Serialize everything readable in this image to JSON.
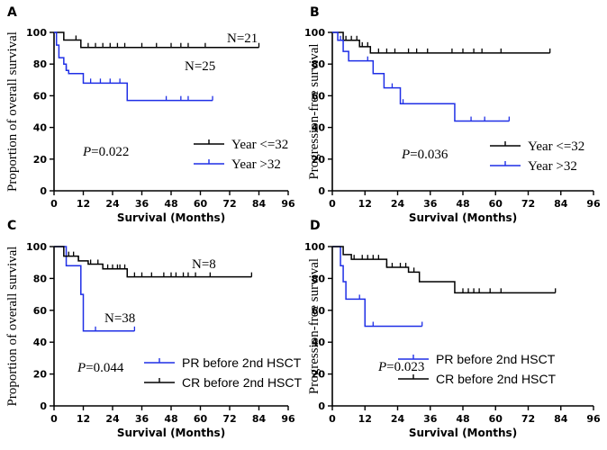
{
  "chart_data": [
    {
      "id": "A",
      "type": "line",
      "panel_letter": "A",
      "xlabel": "Survival (Months)",
      "ylabel": "Proportion of overall survival",
      "xlim": [
        0,
        96
      ],
      "ylim": [
        0,
        100
      ],
      "xticks": [
        "0",
        "12",
        "24",
        "36",
        "48",
        "60",
        "72",
        "84",
        "96"
      ],
      "yticks": [
        "0",
        "20",
        "40",
        "60",
        "80",
        "100"
      ],
      "p_value": "=0.022",
      "legend_font": "serif",
      "series": [
        {
          "name": "Year <=32",
          "color": "#000000",
          "steps": [
            [
              0,
              100
            ],
            [
              4,
              95.2
            ],
            [
              11,
              90.5
            ],
            [
              84,
              90.5
            ]
          ],
          "censors": [
            9,
            14,
            17,
            20,
            23,
            26,
            29,
            36,
            42,
            48,
            52,
            55,
            62,
            84
          ],
          "annotation": "N=21"
        },
        {
          "name": "Year >32",
          "color": "#1f2fe6",
          "steps": [
            [
              0,
              100
            ],
            [
              1,
              92
            ],
            [
              2,
              84
            ],
            [
              4,
              80
            ],
            [
              5,
              76
            ],
            [
              6,
              74
            ],
            [
              12,
              68
            ],
            [
              30,
              57
            ],
            [
              65,
              57
            ]
          ],
          "censors": [
            5,
            15,
            19,
            23,
            27,
            46,
            52,
            55,
            65
          ],
          "annotation": "N=25"
        }
      ]
    },
    {
      "id": "B",
      "type": "line",
      "panel_letter": "B",
      "xlabel": "Survival (Months)",
      "ylabel": "Progression-free survival",
      "xlim": [
        0,
        96
      ],
      "ylim": [
        0,
        100
      ],
      "xticks": [
        "0",
        "12",
        "24",
        "36",
        "48",
        "60",
        "72",
        "84",
        "96"
      ],
      "yticks": [
        "0",
        "20",
        "40",
        "60",
        "80",
        "100"
      ],
      "p_value": "=0.036",
      "legend_font": "serif",
      "series": [
        {
          "name": "Year <=32",
          "color": "#000000",
          "steps": [
            [
              0,
              100
            ],
            [
              4,
              95
            ],
            [
              10,
              91
            ],
            [
              14,
              87
            ],
            [
              80,
              87
            ]
          ],
          "censors": [
            5,
            7,
            9,
            11,
            13,
            17,
            20,
            23,
            28,
            31,
            35,
            44,
            48,
            52,
            55,
            62,
            80
          ],
          "annotation": ""
        },
        {
          "name": "Year >32",
          "color": "#1f2fe6",
          "steps": [
            [
              0,
              100
            ],
            [
              2,
              95
            ],
            [
              4,
              88
            ],
            [
              6,
              82
            ],
            [
              15,
              74
            ],
            [
              19,
              65
            ],
            [
              25,
              55
            ],
            [
              30,
              55
            ],
            [
              45,
              44
            ],
            [
              65,
              44
            ]
          ],
          "censors": [
            3,
            13,
            22,
            26,
            51,
            56,
            65
          ],
          "annotation": ""
        }
      ]
    },
    {
      "id": "C",
      "type": "line",
      "panel_letter": "C",
      "xlabel": "Survival (Months)",
      "ylabel": "Proportion of overall survival",
      "xlim": [
        0,
        96
      ],
      "ylim": [
        0,
        100
      ],
      "xticks": [
        "0",
        "12",
        "24",
        "36",
        "48",
        "60",
        "72",
        "84",
        "96"
      ],
      "yticks": [
        "0",
        "20",
        "40",
        "60",
        "80",
        "100"
      ],
      "p_value": "=0.044",
      "legend_font": "sans",
      "series": [
        {
          "name": "PR before 2nd HSCT",
          "color": "#1f2fe6",
          "steps": [
            [
              0,
              100
            ],
            [
              5,
              88
            ],
            [
              11,
              70
            ],
            [
              12,
              47
            ],
            [
              33,
              47
            ]
          ],
          "censors": [
            11,
            17,
            33
          ],
          "annotation": "N=8"
        },
        {
          "name": "CR before 2nd HSCT",
          "color": "#000000",
          "steps": [
            [
              0,
              100
            ],
            [
              4,
              94
            ],
            [
              10,
              91
            ],
            [
              14,
              89
            ],
            [
              20,
              86
            ],
            [
              30,
              81
            ],
            [
              81,
              81
            ]
          ],
          "censors": [
            6,
            8,
            10,
            15,
            18,
            22,
            24,
            26,
            27,
            29,
            33,
            36,
            40,
            45,
            48,
            50,
            53,
            55,
            58,
            64,
            81
          ],
          "annotation": "N=38"
        }
      ]
    },
    {
      "id": "D",
      "type": "line",
      "panel_letter": "D",
      "xlabel": "Survival (Months)",
      "ylabel": "Progression-free survival",
      "xlim": [
        0,
        96
      ],
      "ylim": [
        0,
        100
      ],
      "xticks": [
        "0",
        "12",
        "24",
        "36",
        "48",
        "60",
        "72",
        "84",
        "96"
      ],
      "yticks": [
        "0",
        "20",
        "40",
        "60",
        "80",
        "100"
      ],
      "p_value": "=0.023",
      "legend_font": "sans",
      "series": [
        {
          "name": "PR before 2nd HSCT",
          "color": "#1f2fe6",
          "steps": [
            [
              0,
              100
            ],
            [
              3,
              88
            ],
            [
              4,
              78
            ],
            [
              5,
              67
            ],
            [
              12,
              50
            ],
            [
              33,
              50
            ]
          ],
          "censors": [
            10,
            15,
            33
          ],
          "annotation": ""
        },
        {
          "name": "CR before 2nd HSCT",
          "color": "#000000",
          "steps": [
            [
              0,
              100
            ],
            [
              4,
              95
            ],
            [
              7,
              92
            ],
            [
              20,
              87
            ],
            [
              28,
              84
            ],
            [
              32,
              78
            ],
            [
              45,
              71
            ],
            [
              82,
              71
            ]
          ],
          "censors": [
            8,
            11,
            13,
            15,
            17,
            20,
            22,
            25,
            27,
            30,
            48,
            50,
            52,
            54,
            58,
            62,
            82
          ],
          "annotation": ""
        }
      ]
    }
  ]
}
